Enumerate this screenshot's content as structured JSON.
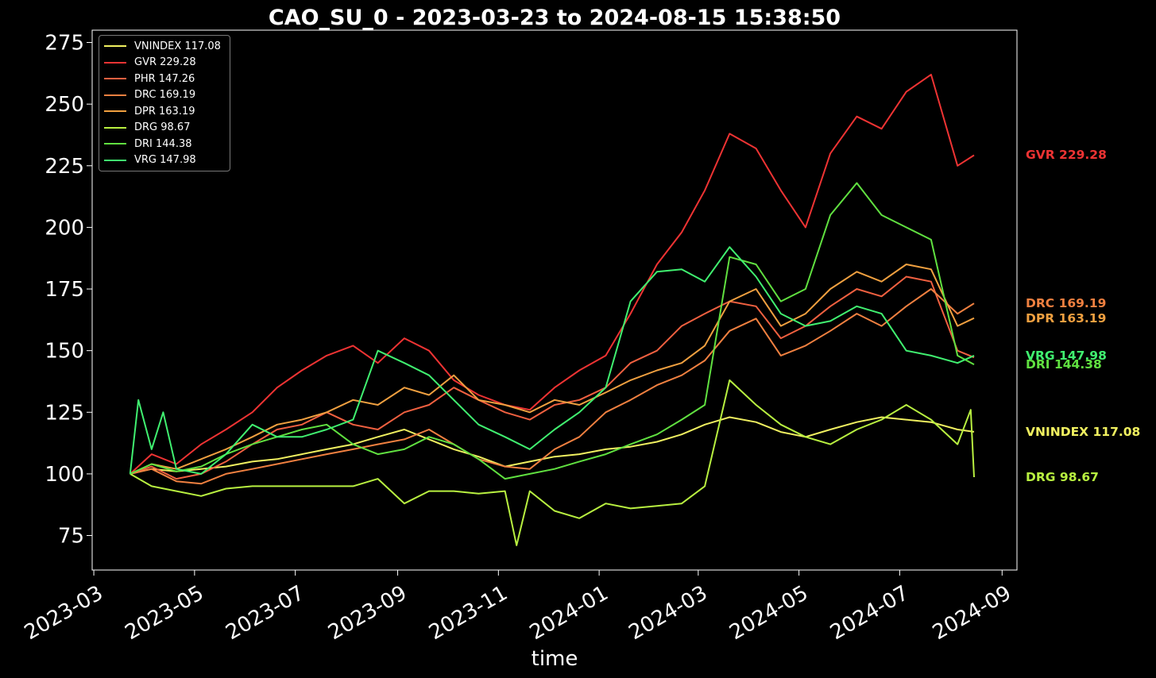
{
  "chart_data": {
    "type": "line",
    "title": "CAO_SU_0 - 2023-03-23 to 2024-08-15 15:38:50",
    "xlabel": "time",
    "ylabel": "",
    "xlim": [
      "2023-02-28",
      "2024-09-10"
    ],
    "ylim": [
      61,
      280
    ],
    "yticks": [
      75,
      100,
      125,
      150,
      175,
      200,
      225,
      250,
      275
    ],
    "xticks": [
      "2023-03",
      "2023-05",
      "2023-07",
      "2023-09",
      "2023-11",
      "2024-01",
      "2024-03",
      "2024-05",
      "2024-07",
      "2024-09"
    ],
    "grid": false,
    "legend_position": "top-left",
    "series": [
      {
        "name": "VNINDEX 117.08",
        "label": "VNINDEX 117.08",
        "color": "#f0f060",
        "x": [
          "2023-03-23",
          "2023-04-05",
          "2023-04-20",
          "2023-05-05",
          "2023-05-20",
          "2023-06-05",
          "2023-06-20",
          "2023-07-05",
          "2023-07-20",
          "2023-08-05",
          "2023-08-20",
          "2023-09-05",
          "2023-09-20",
          "2023-10-05",
          "2023-10-20",
          "2023-11-05",
          "2023-11-20",
          "2023-12-05",
          "2023-12-20",
          "2024-01-05",
          "2024-01-20",
          "2024-02-05",
          "2024-02-20",
          "2024-03-05",
          "2024-03-20",
          "2024-04-05",
          "2024-04-20",
          "2024-05-05",
          "2024-05-20",
          "2024-06-05",
          "2024-06-20",
          "2024-07-05",
          "2024-07-20",
          "2024-08-05",
          "2024-08-15"
        ],
        "y": [
          100,
          102,
          101,
          102,
          103,
          105,
          106,
          108,
          110,
          112,
          115,
          118,
          114,
          110,
          107,
          103,
          105,
          107,
          108,
          110,
          111,
          113,
          116,
          120,
          123,
          121,
          117,
          115,
          118,
          121,
          123,
          122,
          121,
          118,
          117.08
        ]
      },
      {
        "name": "GVR 229.28",
        "label": "GVR 229.28",
        "color": "#ee3333",
        "x": [
          "2023-03-23",
          "2023-04-05",
          "2023-04-20",
          "2023-05-05",
          "2023-05-20",
          "2023-06-05",
          "2023-06-20",
          "2023-07-05",
          "2023-07-20",
          "2023-08-05",
          "2023-08-20",
          "2023-09-05",
          "2023-09-20",
          "2023-10-05",
          "2023-10-20",
          "2023-11-05",
          "2023-11-20",
          "2023-12-05",
          "2023-12-20",
          "2024-01-05",
          "2024-01-20",
          "2024-02-05",
          "2024-02-20",
          "2024-03-05",
          "2024-03-20",
          "2024-04-05",
          "2024-04-20",
          "2024-05-05",
          "2024-05-20",
          "2024-06-05",
          "2024-06-20",
          "2024-07-05",
          "2024-07-20",
          "2024-08-05",
          "2024-08-15"
        ],
        "y": [
          100,
          108,
          104,
          112,
          118,
          125,
          135,
          142,
          148,
          152,
          145,
          155,
          150,
          138,
          132,
          128,
          126,
          135,
          142,
          148,
          165,
          185,
          198,
          215,
          238,
          232,
          215,
          200,
          230,
          245,
          240,
          255,
          262,
          225,
          229.28
        ]
      },
      {
        "name": "PHR 147.26",
        "label": "PHR 147.26",
        "color": "#f06040",
        "x": [
          "2023-03-23",
          "2023-04-05",
          "2023-04-20",
          "2023-05-05",
          "2023-05-20",
          "2023-06-05",
          "2023-06-20",
          "2023-07-05",
          "2023-07-20",
          "2023-08-05",
          "2023-08-20",
          "2023-09-05",
          "2023-09-20",
          "2023-10-05",
          "2023-10-20",
          "2023-11-05",
          "2023-11-20",
          "2023-12-05",
          "2023-12-20",
          "2024-01-05",
          "2024-01-20",
          "2024-02-05",
          "2024-02-20",
          "2024-03-05",
          "2024-03-20",
          "2024-04-05",
          "2024-04-20",
          "2024-05-05",
          "2024-05-20",
          "2024-06-05",
          "2024-06-20",
          "2024-07-05",
          "2024-07-20",
          "2024-08-05",
          "2024-08-15"
        ],
        "y": [
          100,
          103,
          98,
          100,
          105,
          112,
          118,
          120,
          125,
          120,
          118,
          125,
          128,
          135,
          130,
          125,
          122,
          128,
          130,
          135,
          145,
          150,
          160,
          165,
          170,
          168,
          155,
          160,
          168,
          175,
          172,
          180,
          178,
          150,
          147.26
        ]
      },
      {
        "name": "DRC 169.19",
        "label": "DRC 169.19",
        "color": "#f08040",
        "x": [
          "2023-03-23",
          "2023-04-05",
          "2023-04-20",
          "2023-05-05",
          "2023-05-20",
          "2023-06-05",
          "2023-06-20",
          "2023-07-05",
          "2023-07-20",
          "2023-08-05",
          "2023-08-20",
          "2023-09-05",
          "2023-09-20",
          "2023-10-05",
          "2023-10-20",
          "2023-11-05",
          "2023-11-20",
          "2023-12-05",
          "2023-12-20",
          "2024-01-05",
          "2024-01-20",
          "2024-02-05",
          "2024-02-20",
          "2024-03-05",
          "2024-03-20",
          "2024-04-05",
          "2024-04-20",
          "2024-05-05",
          "2024-05-20",
          "2024-06-05",
          "2024-06-20",
          "2024-07-05",
          "2024-07-20",
          "2024-08-05",
          "2024-08-15"
        ],
        "y": [
          100,
          102,
          97,
          96,
          100,
          102,
          104,
          106,
          108,
          110,
          112,
          114,
          118,
          112,
          106,
          103,
          102,
          110,
          115,
          125,
          130,
          136,
          140,
          146,
          158,
          163,
          148,
          152,
          158,
          165,
          160,
          168,
          175,
          165,
          169.19
        ]
      },
      {
        "name": "DPR 163.19",
        "label": "DPR 163.19",
        "color": "#f0a040",
        "x": [
          "2023-03-23",
          "2023-04-05",
          "2023-04-20",
          "2023-05-05",
          "2023-05-20",
          "2023-06-05",
          "2023-06-20",
          "2023-07-05",
          "2023-07-20",
          "2023-08-05",
          "2023-08-20",
          "2023-09-05",
          "2023-09-20",
          "2023-10-05",
          "2023-10-20",
          "2023-11-05",
          "2023-11-20",
          "2023-12-05",
          "2023-12-20",
          "2024-01-05",
          "2024-01-20",
          "2024-02-05",
          "2024-02-20",
          "2024-03-05",
          "2024-03-20",
          "2024-04-05",
          "2024-04-20",
          "2024-05-05",
          "2024-05-20",
          "2024-06-05",
          "2024-06-20",
          "2024-07-05",
          "2024-07-20",
          "2024-08-05",
          "2024-08-15"
        ],
        "y": [
          100,
          104,
          102,
          106,
          110,
          115,
          120,
          122,
          125,
          130,
          128,
          135,
          132,
          140,
          130,
          128,
          125,
          130,
          128,
          133,
          138,
          142,
          145,
          152,
          170,
          175,
          160,
          165,
          175,
          182,
          178,
          185,
          183,
          160,
          163.19
        ]
      },
      {
        "name": "DRG 98.67",
        "label": "DRG 98.67",
        "color": "#b8f040",
        "x": [
          "2023-03-23",
          "2023-04-05",
          "2023-04-20",
          "2023-05-05",
          "2023-05-20",
          "2023-06-05",
          "2023-06-20",
          "2023-07-05",
          "2023-07-20",
          "2023-08-05",
          "2023-08-20",
          "2023-09-05",
          "2023-09-20",
          "2023-10-05",
          "2023-10-20",
          "2023-11-05",
          "2023-11-12",
          "2023-11-20",
          "2023-12-05",
          "2023-12-20",
          "2024-01-05",
          "2024-01-20",
          "2024-02-05",
          "2024-02-20",
          "2024-03-05",
          "2024-03-20",
          "2024-04-05",
          "2024-04-20",
          "2024-05-05",
          "2024-05-20",
          "2024-06-05",
          "2024-06-20",
          "2024-07-05",
          "2024-07-20",
          "2024-08-05",
          "2024-08-13",
          "2024-08-15"
        ],
        "y": [
          100,
          95,
          93,
          91,
          94,
          95,
          95,
          95,
          95,
          95,
          98,
          88,
          93,
          93,
          92,
          93,
          71,
          93,
          85,
          82,
          88,
          86,
          87,
          88,
          95,
          138,
          128,
          120,
          115,
          112,
          118,
          122,
          128,
          122,
          112,
          126,
          98.67
        ]
      },
      {
        "name": "DRI 144.38",
        "label": "DRI 144.38",
        "color": "#60e040",
        "x": [
          "2023-03-23",
          "2023-04-05",
          "2023-04-20",
          "2023-05-05",
          "2023-05-20",
          "2023-06-05",
          "2023-06-20",
          "2023-07-05",
          "2023-07-20",
          "2023-08-05",
          "2023-08-20",
          "2023-09-05",
          "2023-09-20",
          "2023-10-05",
          "2023-10-20",
          "2023-11-05",
          "2023-11-20",
          "2023-12-05",
          "2023-12-20",
          "2024-01-05",
          "2024-01-20",
          "2024-02-05",
          "2024-02-20",
          "2024-03-05",
          "2024-03-20",
          "2024-04-05",
          "2024-04-20",
          "2024-05-05",
          "2024-05-20",
          "2024-06-05",
          "2024-06-20",
          "2024-07-05",
          "2024-07-20",
          "2024-08-05",
          "2024-08-15"
        ],
        "y": [
          100,
          104,
          101,
          103,
          108,
          112,
          115,
          118,
          120,
          112,
          108,
          110,
          115,
          112,
          106,
          98,
          100,
          102,
          105,
          108,
          112,
          116,
          122,
          128,
          188,
          185,
          170,
          175,
          205,
          218,
          205,
          200,
          195,
          148,
          144.38
        ]
      },
      {
        "name": "VRG 147.98",
        "label": "VRG 147.98",
        "color": "#40f070",
        "x": [
          "2023-03-23",
          "2023-03-28",
          "2023-04-05",
          "2023-04-12",
          "2023-04-20",
          "2023-05-05",
          "2023-05-20",
          "2023-06-05",
          "2023-06-20",
          "2023-07-05",
          "2023-07-20",
          "2023-08-05",
          "2023-08-20",
          "2023-09-05",
          "2023-09-20",
          "2023-10-05",
          "2023-10-20",
          "2023-11-05",
          "2023-11-20",
          "2023-12-05",
          "2023-12-20",
          "2024-01-05",
          "2024-01-20",
          "2024-02-05",
          "2024-02-20",
          "2024-03-05",
          "2024-03-20",
          "2024-04-05",
          "2024-04-20",
          "2024-05-05",
          "2024-05-20",
          "2024-06-05",
          "2024-06-20",
          "2024-07-05",
          "2024-07-20",
          "2024-08-05",
          "2024-08-15"
        ],
        "y": [
          100,
          130,
          110,
          125,
          102,
          100,
          108,
          120,
          115,
          115,
          118,
          122,
          150,
          145,
          140,
          130,
          120,
          115,
          110,
          118,
          125,
          135,
          170,
          182,
          183,
          178,
          192,
          180,
          165,
          160,
          162,
          168,
          165,
          150,
          148,
          145,
          147.98
        ]
      }
    ],
    "end_labels": [
      {
        "text": "GVR 229.28",
        "value": 229.28,
        "color": "#ee3333"
      },
      {
        "text": "DRC 169.19",
        "value": 169.19,
        "color": "#f08040"
      },
      {
        "text": "DPR 163.19",
        "value": 163.19,
        "color": "#f0a040"
      },
      {
        "text": "VRG 147.98",
        "value": 147.98,
        "color": "#40f070"
      },
      {
        "text": "DRI 144.38",
        "value": 144.38,
        "color": "#60e040"
      },
      {
        "text": "VNINDEX 117.08",
        "value": 117.08,
        "color": "#f0f060"
      },
      {
        "text": "DRG 98.67",
        "value": 98.67,
        "color": "#b8f040"
      }
    ]
  }
}
